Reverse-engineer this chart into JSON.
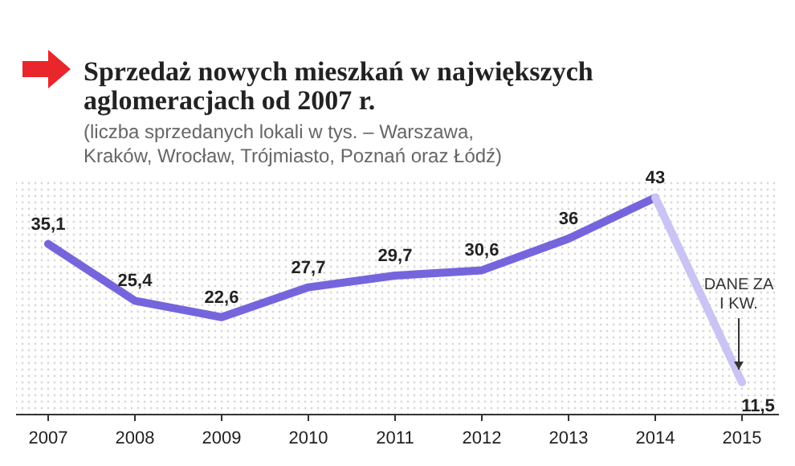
{
  "chart_data": {
    "type": "line",
    "title": "Sprzedaż nowych mieszkań w największych aglomeracjach od 2007 r.",
    "subtitle": "(liczba sprzedanych lokali w tys. – Warszawa, Kraków, Wrocław, Trójmiasto, Poznań oraz Łódź)",
    "categories": [
      "2007",
      "2008",
      "2009",
      "2010",
      "2011",
      "2012",
      "2013",
      "2014",
      "2015"
    ],
    "series": [
      {
        "color": "#7565dd",
        "values": [
          35.1,
          25.4,
          22.6,
          27.7,
          29.7,
          30.6,
          36,
          43,
          null
        ],
        "value_labels": [
          "35,1",
          "25,4",
          "22,6",
          "27,7",
          "29,7",
          "30,6",
          "36",
          "43",
          null
        ]
      },
      {
        "color": "#c9c4f3",
        "values": [
          null,
          null,
          null,
          null,
          null,
          null,
          null,
          43,
          11.5
        ],
        "value_labels": [
          null,
          null,
          null,
          null,
          null,
          null,
          null,
          null,
          "11,5"
        ]
      }
    ],
    "ylim": [
      6,
      46
    ],
    "tick_labels": "x",
    "grid": false,
    "marker": "none",
    "line_style": "solid",
    "annotations": [
      "DANE ZA I KW."
    ]
  }
}
